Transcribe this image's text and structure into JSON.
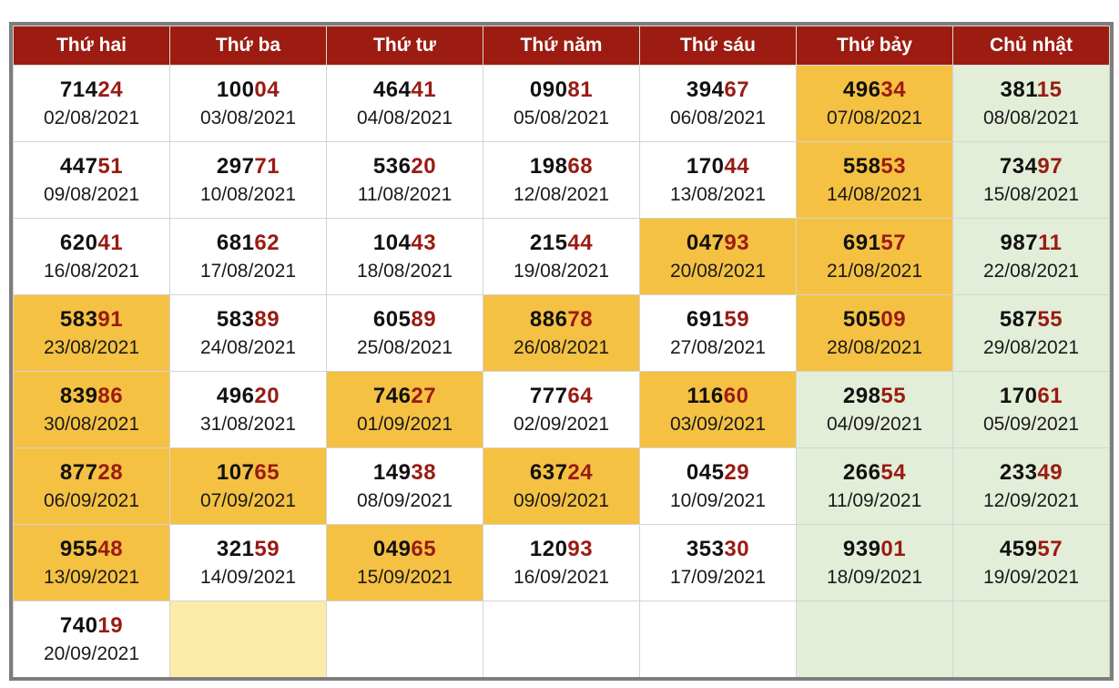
{
  "headers": [
    "Thứ hai",
    "Thứ ba",
    "Thứ tư",
    "Thứ năm",
    "Thứ sáu",
    "Thứ bảy",
    "Chủ nhật"
  ],
  "colors": {
    "header_bg": "#9c1c12",
    "highlight": "#f5c142",
    "sunday": "#e3eed8",
    "pale_highlight": "#fcebaa",
    "suffix": "#9a1b13"
  },
  "rows": [
    [
      {
        "prefix": "714",
        "suffix": "24",
        "date": "02/08/2021",
        "style": "normal"
      },
      {
        "prefix": "100",
        "suffix": "04",
        "date": "03/08/2021",
        "style": "normal"
      },
      {
        "prefix": "464",
        "suffix": "41",
        "date": "04/08/2021",
        "style": "normal"
      },
      {
        "prefix": "090",
        "suffix": "81",
        "date": "05/08/2021",
        "style": "normal"
      },
      {
        "prefix": "394",
        "suffix": "67",
        "date": "06/08/2021",
        "style": "normal"
      },
      {
        "prefix": "496",
        "suffix": "34",
        "date": "07/08/2021",
        "style": "highlight"
      },
      {
        "prefix": "381",
        "suffix": "15",
        "date": "08/08/2021",
        "style": "sunday"
      }
    ],
    [
      {
        "prefix": "447",
        "suffix": "51",
        "date": "09/08/2021",
        "style": "normal"
      },
      {
        "prefix": "297",
        "suffix": "71",
        "date": "10/08/2021",
        "style": "normal"
      },
      {
        "prefix": "536",
        "suffix": "20",
        "date": "11/08/2021",
        "style": "normal"
      },
      {
        "prefix": "198",
        "suffix": "68",
        "date": "12/08/2021",
        "style": "normal"
      },
      {
        "prefix": "170",
        "suffix": "44",
        "date": "13/08/2021",
        "style": "normal"
      },
      {
        "prefix": "558",
        "suffix": "53",
        "date": "14/08/2021",
        "style": "highlight"
      },
      {
        "prefix": "734",
        "suffix": "97",
        "date": "15/08/2021",
        "style": "sunday"
      }
    ],
    [
      {
        "prefix": "620",
        "suffix": "41",
        "date": "16/08/2021",
        "style": "normal"
      },
      {
        "prefix": "681",
        "suffix": "62",
        "date": "17/08/2021",
        "style": "normal"
      },
      {
        "prefix": "104",
        "suffix": "43",
        "date": "18/08/2021",
        "style": "normal"
      },
      {
        "prefix": "215",
        "suffix": "44",
        "date": "19/08/2021",
        "style": "normal"
      },
      {
        "prefix": "047",
        "suffix": "93",
        "date": "20/08/2021",
        "style": "highlight"
      },
      {
        "prefix": "691",
        "suffix": "57",
        "date": "21/08/2021",
        "style": "highlight"
      },
      {
        "prefix": "987",
        "suffix": "11",
        "date": "22/08/2021",
        "style": "sunday"
      }
    ],
    [
      {
        "prefix": "583",
        "suffix": "91",
        "date": "23/08/2021",
        "style": "highlight"
      },
      {
        "prefix": "583",
        "suffix": "89",
        "date": "24/08/2021",
        "style": "normal"
      },
      {
        "prefix": "605",
        "suffix": "89",
        "date": "25/08/2021",
        "style": "normal"
      },
      {
        "prefix": "886",
        "suffix": "78",
        "date": "26/08/2021",
        "style": "highlight"
      },
      {
        "prefix": "691",
        "suffix": "59",
        "date": "27/08/2021",
        "style": "normal"
      },
      {
        "prefix": "505",
        "suffix": "09",
        "date": "28/08/2021",
        "style": "highlight"
      },
      {
        "prefix": "587",
        "suffix": "55",
        "date": "29/08/2021",
        "style": "sunday"
      }
    ],
    [
      {
        "prefix": "839",
        "suffix": "86",
        "date": "30/08/2021",
        "style": "highlight"
      },
      {
        "prefix": "496",
        "suffix": "20",
        "date": "31/08/2021",
        "style": "normal"
      },
      {
        "prefix": "746",
        "suffix": "27",
        "date": "01/09/2021",
        "style": "highlight"
      },
      {
        "prefix": "777",
        "suffix": "64",
        "date": "02/09/2021",
        "style": "normal"
      },
      {
        "prefix": "116",
        "suffix": "60",
        "date": "03/09/2021",
        "style": "highlight"
      },
      {
        "prefix": "298",
        "suffix": "55",
        "date": "04/09/2021",
        "style": "sunday"
      },
      {
        "prefix": "170",
        "suffix": "61",
        "date": "05/09/2021",
        "style": "sunday"
      }
    ],
    [
      {
        "prefix": "877",
        "suffix": "28",
        "date": "06/09/2021",
        "style": "highlight"
      },
      {
        "prefix": "107",
        "suffix": "65",
        "date": "07/09/2021",
        "style": "highlight"
      },
      {
        "prefix": "149",
        "suffix": "38",
        "date": "08/09/2021",
        "style": "normal"
      },
      {
        "prefix": "637",
        "suffix": "24",
        "date": "09/09/2021",
        "style": "highlight"
      },
      {
        "prefix": "045",
        "suffix": "29",
        "date": "10/09/2021",
        "style": "normal"
      },
      {
        "prefix": "266",
        "suffix": "54",
        "date": "11/09/2021",
        "style": "sunday"
      },
      {
        "prefix": "233",
        "suffix": "49",
        "date": "12/09/2021",
        "style": "sunday"
      }
    ],
    [
      {
        "prefix": "955",
        "suffix": "48",
        "date": "13/09/2021",
        "style": "highlight"
      },
      {
        "prefix": "321",
        "suffix": "59",
        "date": "14/09/2021",
        "style": "normal"
      },
      {
        "prefix": "049",
        "suffix": "65",
        "date": "15/09/2021",
        "style": "highlight"
      },
      {
        "prefix": "120",
        "suffix": "93",
        "date": "16/09/2021",
        "style": "normal"
      },
      {
        "prefix": "353",
        "suffix": "30",
        "date": "17/09/2021",
        "style": "normal"
      },
      {
        "prefix": "939",
        "suffix": "01",
        "date": "18/09/2021",
        "style": "sunday"
      },
      {
        "prefix": "459",
        "suffix": "57",
        "date": "19/09/2021",
        "style": "sunday"
      }
    ],
    [
      {
        "prefix": "740",
        "suffix": "19",
        "date": "20/09/2021",
        "style": "normal"
      },
      {
        "prefix": "",
        "suffix": "",
        "date": "",
        "style": "pale"
      },
      {
        "prefix": "",
        "suffix": "",
        "date": "",
        "style": "normal"
      },
      {
        "prefix": "",
        "suffix": "",
        "date": "",
        "style": "normal"
      },
      {
        "prefix": "",
        "suffix": "",
        "date": "",
        "style": "normal"
      },
      {
        "prefix": "",
        "suffix": "",
        "date": "",
        "style": "sunday"
      },
      {
        "prefix": "",
        "suffix": "",
        "date": "",
        "style": "sunday"
      }
    ]
  ]
}
